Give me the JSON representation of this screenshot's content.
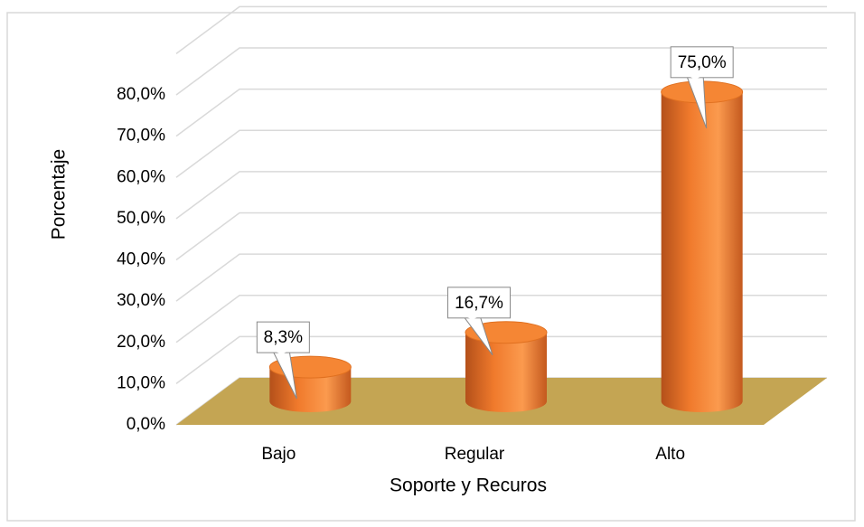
{
  "chart_data": {
    "type": "bar3d",
    "x_label": "Soporte y Recuros",
    "y_label": "Porcentaje",
    "categories": [
      "Bajo",
      "Regular",
      "Alto"
    ],
    "values": [
      8.3,
      16.7,
      75.0
    ],
    "value_labels": [
      "8,3%",
      "16,7%",
      "75,0%"
    ],
    "color": "#f58634",
    "floor_color": "#c4a553",
    "ylim": [
      0,
      90
    ],
    "yticks": [
      {
        "value": 0,
        "label": "0,0%"
      },
      {
        "value": 10,
        "label": "10,0%"
      },
      {
        "value": 20,
        "label": "20,0%"
      },
      {
        "value": 30,
        "label": "30,0%"
      },
      {
        "value": 40,
        "label": "40,0%"
      },
      {
        "value": 50,
        "label": "50,0%"
      },
      {
        "value": 60,
        "label": "60,0%"
      },
      {
        "value": 70,
        "label": "70,0%"
      },
      {
        "value": 80,
        "label": "80,0%"
      }
    ],
    "grid": true
  }
}
